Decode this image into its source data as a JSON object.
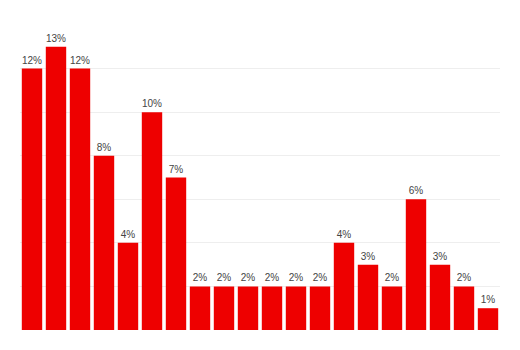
{
  "chart_data": {
    "type": "bar",
    "categories": [
      null,
      null,
      null,
      null,
      null,
      null,
      null,
      null,
      null,
      null,
      null,
      null,
      null,
      null,
      null,
      null,
      null,
      null,
      null,
      null
    ],
    "values": [
      12,
      13,
      12,
      8,
      4,
      10,
      7,
      2,
      2,
      2,
      2,
      2,
      2,
      4,
      3,
      2,
      6,
      3,
      2,
      1
    ],
    "value_labels": [
      "12%",
      "13%",
      "12%",
      "8%",
      "4%",
      "10%",
      "7%",
      "2%",
      "2%",
      "2%",
      "2%",
      "2%",
      "2%",
      "4%",
      "3%",
      "2%",
      "6%",
      "3%",
      "2%",
      "1%"
    ],
    "data_labels": true,
    "color": "#ee0000",
    "ylim": [
      0,
      14
    ],
    "yticks": [
      0,
      2,
      4,
      6,
      8,
      10,
      12,
      14
    ],
    "grid": true,
    "tick_labels": false
  }
}
